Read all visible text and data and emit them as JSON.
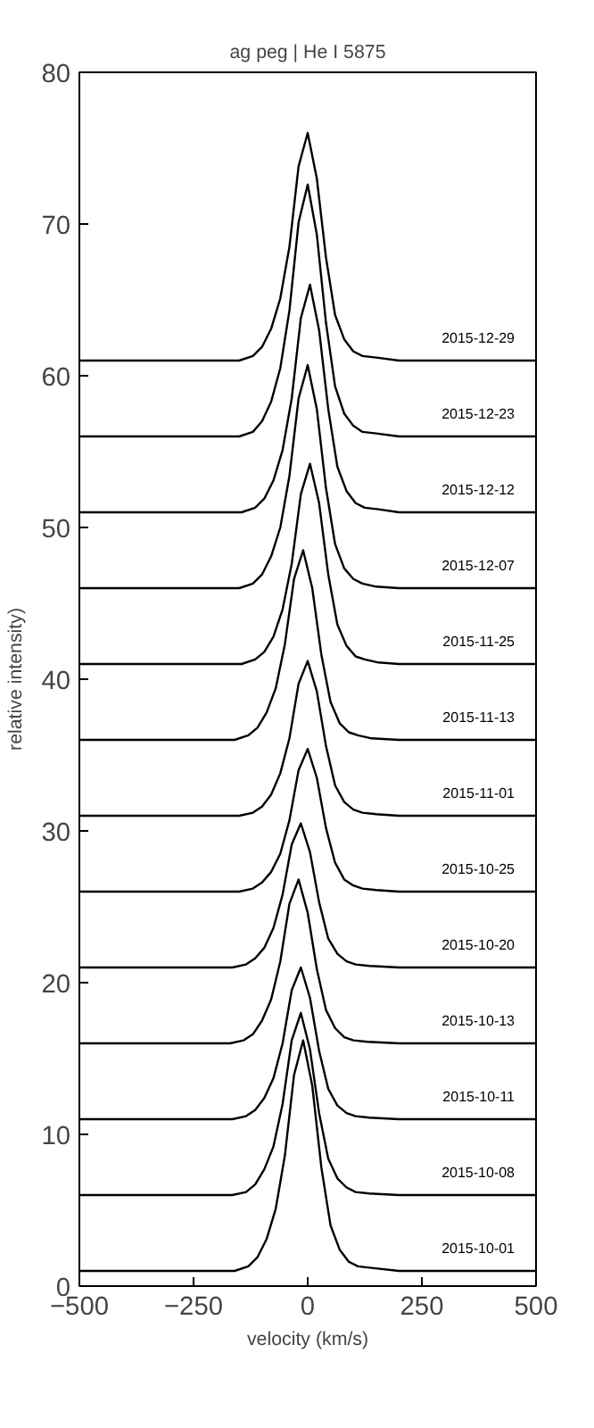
{
  "chart_data": {
    "type": "line",
    "title": "ag peg | He I 5875",
    "xlabel": "velocity (km/s)",
    "ylabel": "relative intensity)",
    "xlim": [
      -500,
      500
    ],
    "xticks": [
      -500,
      -250,
      0,
      250,
      500
    ],
    "ylim": [
      0,
      80
    ],
    "yticks": [
      0,
      10,
      20,
      30,
      40,
      50,
      60,
      70,
      80
    ],
    "series": [
      {
        "name": "2015-10-01",
        "color": "#000000",
        "x": [
          -500,
          -400,
          -300,
          -200,
          -160,
          -130,
          -110,
          -90,
          -70,
          -50,
          -30,
          -10,
          10,
          30,
          50,
          70,
          90,
          110,
          140,
          200,
          300,
          400,
          500
        ],
        "values": [
          1,
          1,
          1,
          1,
          1,
          1.3,
          1.9,
          3.1,
          5.1,
          8.6,
          13.9,
          16.2,
          13.2,
          7.8,
          4.0,
          2.4,
          1.6,
          1.3,
          1.2,
          1,
          1,
          1,
          1
        ]
      },
      {
        "name": "2015-10-08",
        "color": "#000000",
        "x": [
          -500,
          -400,
          -300,
          -200,
          -165,
          -135,
          -115,
          -95,
          -75,
          -55,
          -35,
          -15,
          5,
          25,
          45,
          65,
          85,
          105,
          135,
          200,
          300,
          400,
          500
        ],
        "values": [
          6,
          6,
          6,
          6,
          6,
          6.2,
          6.7,
          7.7,
          9.2,
          12,
          16.2,
          18,
          15.6,
          11.4,
          8.4,
          7.1,
          6.5,
          6.2,
          6.1,
          6,
          6,
          6,
          6
        ]
      },
      {
        "name": "2015-10-11",
        "color": "#000000",
        "x": [
          -500,
          -400,
          -300,
          -200,
          -165,
          -135,
          -115,
          -95,
          -75,
          -55,
          -35,
          -15,
          5,
          25,
          45,
          65,
          85,
          105,
          135,
          200,
          300,
          400,
          500
        ],
        "values": [
          11,
          11,
          11,
          11,
          11,
          11.2,
          11.6,
          12.4,
          13.7,
          16,
          19.5,
          21,
          19,
          15.5,
          13,
          11.9,
          11.4,
          11.2,
          11.1,
          11,
          11,
          11,
          11
        ]
      },
      {
        "name": "2015-10-13",
        "color": "#000000",
        "x": [
          -500,
          -400,
          -300,
          -200,
          -170,
          -140,
          -120,
          -100,
          -80,
          -60,
          -40,
          -20,
          0,
          20,
          40,
          60,
          80,
          100,
          130,
          200,
          300,
          400,
          500
        ],
        "values": [
          16,
          16,
          16,
          16,
          16,
          16.2,
          16.6,
          17.5,
          18.9,
          21.4,
          25.2,
          26.8,
          24.6,
          20.9,
          18.2,
          17.0,
          16.4,
          16.2,
          16.1,
          16,
          16,
          16,
          16
        ]
      },
      {
        "name": "2015-10-20",
        "color": "#000000",
        "x": [
          -500,
          -400,
          -300,
          -200,
          -165,
          -135,
          -115,
          -95,
          -75,
          -55,
          -35,
          -15,
          5,
          25,
          45,
          65,
          85,
          105,
          135,
          200,
          300,
          400,
          500
        ],
        "values": [
          21,
          21,
          21,
          21,
          21,
          21.2,
          21.6,
          22.3,
          23.6,
          25.8,
          29.1,
          30.5,
          28.6,
          25.3,
          22.9,
          21.9,
          21.4,
          21.2,
          21.1,
          21,
          21,
          21,
          21
        ]
      },
      {
        "name": "2015-10-25",
        "color": "#000000",
        "x": [
          -500,
          -400,
          -300,
          -200,
          -150,
          -120,
          -100,
          -80,
          -60,
          -40,
          -20,
          0,
          20,
          40,
          60,
          80,
          100,
          120,
          150,
          200,
          300,
          400,
          500
        ],
        "values": [
          26,
          26,
          26,
          26,
          26,
          26.2,
          26.6,
          27.3,
          28.5,
          30.7,
          34,
          35.4,
          33.5,
          30.2,
          27.9,
          26.8,
          26.4,
          26.2,
          26.1,
          26,
          26,
          26,
          26
        ]
      },
      {
        "name": "2015-11-01",
        "color": "#000000",
        "x": [
          -500,
          -400,
          -300,
          -200,
          -150,
          -120,
          -100,
          -80,
          -60,
          -40,
          -20,
          0,
          20,
          40,
          60,
          80,
          100,
          120,
          150,
          200,
          300,
          400,
          500
        ],
        "values": [
          31,
          31,
          31,
          31,
          31,
          31.2,
          31.6,
          32.4,
          33.8,
          36.1,
          39.7,
          41.2,
          39.2,
          35.6,
          33,
          31.9,
          31.4,
          31.2,
          31.1,
          31,
          31,
          31,
          31
        ]
      },
      {
        "name": "2015-11-13",
        "color": "#000000",
        "x": [
          -500,
          -400,
          -300,
          -200,
          -160,
          -130,
          -110,
          -90,
          -70,
          -50,
          -30,
          -10,
          10,
          30,
          50,
          70,
          90,
          110,
          140,
          200,
          300,
          400,
          500
        ],
        "values": [
          36,
          36,
          36,
          36,
          36,
          36.3,
          36.8,
          37.8,
          39.4,
          42.3,
          46.6,
          48.5,
          46,
          41.6,
          38.5,
          37.1,
          36.5,
          36.3,
          36.1,
          36,
          36,
          36,
          36
        ]
      },
      {
        "name": "2015-11-25",
        "color": "#000000",
        "x": [
          -500,
          -400,
          -300,
          -200,
          -145,
          -115,
          -95,
          -75,
          -55,
          -35,
          -15,
          5,
          25,
          45,
          65,
          85,
          105,
          125,
          155,
          200,
          300,
          400,
          500
        ],
        "values": [
          41,
          41,
          41,
          41,
          41,
          41.3,
          41.8,
          42.8,
          44.6,
          47.6,
          52.2,
          54.2,
          51.6,
          46.9,
          43.6,
          42.2,
          41.5,
          41.3,
          41.1,
          41,
          41,
          41,
          41
        ]
      },
      {
        "name": "2015-12-07",
        "color": "#000000",
        "x": [
          -500,
          -400,
          -300,
          -200,
          -150,
          -120,
          -100,
          -80,
          -60,
          -40,
          -20,
          0,
          20,
          40,
          60,
          80,
          100,
          120,
          150,
          200,
          300,
          400,
          500
        ],
        "values": [
          46,
          46,
          46,
          46,
          46,
          46.3,
          46.9,
          48.1,
          50,
          53.4,
          58.5,
          60.7,
          57.8,
          52.6,
          48.9,
          47.3,
          46.6,
          46.3,
          46.1,
          46,
          46,
          46,
          46
        ]
      },
      {
        "name": "2015-12-12",
        "color": "#000000",
        "x": [
          -500,
          -400,
          -300,
          -200,
          -145,
          -115,
          -95,
          -75,
          -55,
          -35,
          -15,
          5,
          25,
          45,
          65,
          85,
          105,
          125,
          155,
          200,
          300,
          400,
          500
        ],
        "values": [
          51,
          51,
          51,
          51,
          51,
          51.3,
          51.9,
          53.1,
          55.1,
          58.5,
          63.8,
          66,
          63,
          57.8,
          54,
          52.4,
          51.6,
          51.3,
          51.2,
          51,
          51,
          51,
          51
        ]
      },
      {
        "name": "2015-12-23",
        "color": "#000000",
        "x": [
          -500,
          -400,
          -300,
          -200,
          -150,
          -120,
          -100,
          -80,
          -60,
          -40,
          -20,
          0,
          20,
          40,
          60,
          80,
          100,
          120,
          150,
          200,
          300,
          400,
          500
        ],
        "values": [
          56,
          56,
          56,
          56,
          56,
          56.3,
          57,
          58.3,
          60.5,
          64.3,
          70.1,
          72.6,
          69.3,
          63.5,
          59.3,
          57.5,
          56.7,
          56.3,
          56.2,
          56,
          56,
          56,
          56
        ]
      },
      {
        "name": "2015-12-29",
        "color": "#000000",
        "x": [
          -500,
          -400,
          -300,
          -200,
          -150,
          -120,
          -100,
          -80,
          -60,
          -40,
          -20,
          0,
          20,
          40,
          60,
          80,
          100,
          120,
          150,
          200,
          300,
          400,
          500
        ],
        "values": [
          61,
          61,
          61,
          61,
          61,
          61.3,
          61.9,
          63.1,
          65.1,
          68.5,
          73.8,
          76,
          73,
          67.8,
          64,
          62.4,
          61.6,
          61.3,
          61.2,
          61,
          61,
          61,
          61
        ]
      }
    ]
  }
}
